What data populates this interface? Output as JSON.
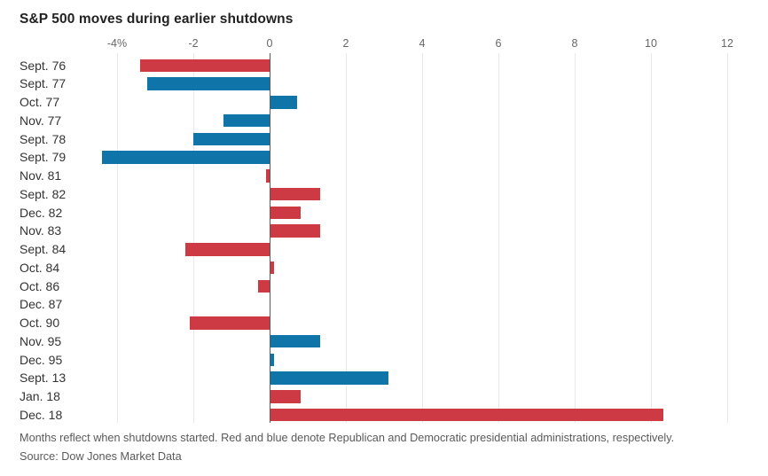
{
  "title": "S&P 500 moves during earlier shutdowns",
  "footnote": "Months reflect when shutdowns started. Red and blue denote Republican and Democratic presidential administrations, respectively.",
  "source": "Source: Dow Jones Market Data",
  "colors": {
    "republican_red": "#cd3a43",
    "democratic_blue": "#0f75a8",
    "gridline": "#e9e9e9",
    "zero_line": "#58595b",
    "title_text": "#222222",
    "category_text": "#333333",
    "tick_text": "#666666",
    "footer_text": "#5a5a5a"
  },
  "chart_data": {
    "type": "bar",
    "orientation": "horizontal",
    "title": "S&P 500 moves during earlier shutdowns",
    "xlabel": "",
    "ylabel": "",
    "unit": "percent",
    "grid": true,
    "legend_position": "none",
    "xlim": [
      -4.45,
      12.75
    ],
    "x_ticks": [
      -4,
      -2,
      0,
      2,
      4,
      6,
      8,
      10,
      12
    ],
    "x_tick_labels": [
      "-4%",
      "-2",
      "0",
      "2",
      "4",
      "6",
      "8",
      "10",
      "12"
    ],
    "categories": [
      "Sept. 76",
      "Sept. 77",
      "Oct. 77",
      "Nov. 77",
      "Sept. 78",
      "Sept. 79",
      "Nov. 81",
      "Sept. 82",
      "Dec. 82",
      "Nov. 83",
      "Sept. 84",
      "Oct. 84",
      "Oct. 86",
      "Dec. 87",
      "Oct. 90",
      "Nov. 95",
      "Dec. 95",
      "Sept. 13",
      "Jan. 18",
      "Dec. 18"
    ],
    "values": [
      -3.4,
      -3.2,
      0.7,
      -1.2,
      -2.0,
      -4.4,
      -0.1,
      1.3,
      0.8,
      1.3,
      -2.2,
      0.1,
      -0.3,
      0.0,
      -2.1,
      1.3,
      0.1,
      3.1,
      0.8,
      10.3
    ],
    "parties": [
      "republican",
      "democratic",
      "democratic",
      "democratic",
      "democratic",
      "democratic",
      "republican",
      "republican",
      "republican",
      "republican",
      "republican",
      "republican",
      "republican",
      "republican",
      "republican",
      "democratic",
      "democratic",
      "democratic",
      "republican",
      "republican"
    ]
  }
}
